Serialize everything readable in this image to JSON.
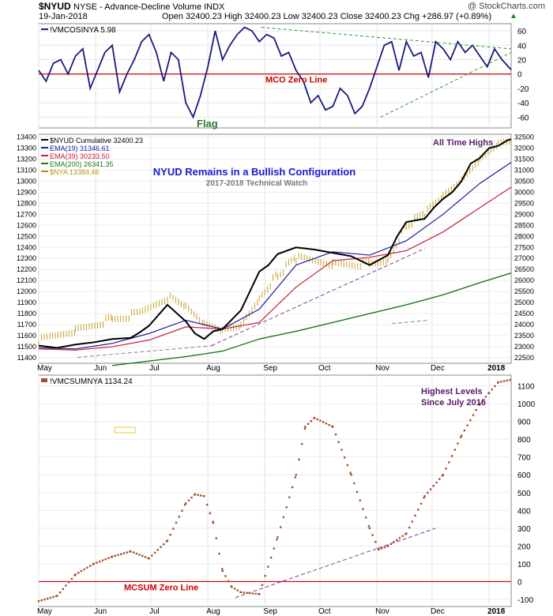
{
  "header": {
    "symbol": "$NYUD",
    "description": "NYSE - Advance-Decline Volume INDX",
    "watermark": "@ StockCharts.com",
    "date": "19-Jan-2018",
    "quote": "Open 32400.23  High 32400.23  Low 32400.23  Close 32400.23  Chg +286.97 (+0.89%)",
    "chg_marker": "▲"
  },
  "months": [
    "May",
    "Jun",
    "Jul",
    "Aug",
    "Sep",
    "Oct",
    "Nov",
    "Dec",
    "2018"
  ],
  "panel1": {
    "legend": "!VMCOSINYA 5.98",
    "zero_label": "MCO Zero Line",
    "flag_label": "Flag",
    "yticks": [
      60,
      40,
      20,
      0,
      -20,
      -40,
      -60
    ],
    "ylim": [
      -75,
      70
    ],
    "series_color": "#1a1a80",
    "zero_color": "#cc0000",
    "trend_color": "#339933"
  },
  "panel2": {
    "legend": [
      {
        "text": "$NYUD Cumulative 32400.23",
        "color": "#000000"
      },
      {
        "text": "EMA(19) 31346.61",
        "color": "#1a1a9a"
      },
      {
        "text": "EMA(39) 30233.50",
        "color": "#cc1a3a"
      },
      {
        "text": "EMA(200) 26341.35",
        "color": "#1a7a1a"
      },
      {
        "text": "$NYA 13384.46",
        "color": "#b8960a"
      }
    ],
    "title": "NYUD Remains in a Bullish Configuration",
    "subtitle": "2017-2018 Technical Watch",
    "ath_label": "All Time Highs",
    "left_ticks": [
      13400,
      13300,
      13200,
      13100,
      13000,
      12900,
      12800,
      12700,
      12600,
      12500,
      12400,
      12300,
      12200,
      12100,
      12000,
      11900,
      11800,
      11700,
      11600,
      11500,
      11400
    ],
    "right_ticks": [
      32500,
      32000,
      31500,
      31000,
      30500,
      30000,
      29500,
      29000,
      28500,
      28000,
      27500,
      27000,
      26500,
      26000,
      25500,
      25000,
      24500,
      24000,
      23500,
      23000,
      22500
    ],
    "ylim_left": [
      11350,
      13425
    ],
    "ylim_right": [
      22250,
      32625
    ]
  },
  "panel3": {
    "legend": "!VMCSUMNYA 1134.24",
    "zero_label": "MCSUM Zero Line",
    "annotation_line1": "Highest Levels",
    "annotation_line2": "Since July 2016",
    "yticks": [
      1100,
      1000,
      900,
      800,
      700,
      600,
      500,
      400,
      300,
      200,
      100,
      0,
      -100
    ],
    "ylim": [
      -140,
      1160
    ],
    "dot_color": "#a0522d"
  },
  "chart_data": [
    {
      "type": "line",
      "title": "",
      "series": [
        {
          "name": "!VMCOSINYA",
          "x_days": [
            0,
            4,
            8,
            12,
            16,
            20,
            24,
            28,
            32,
            36,
            40,
            44,
            48,
            52,
            56,
            60,
            64,
            68,
            72,
            76,
            80,
            84,
            88,
            92,
            96,
            100,
            104,
            108,
            112,
            116,
            120,
            124,
            128,
            132,
            136,
            140,
            144,
            148,
            152,
            156,
            160,
            164,
            168,
            172,
            176,
            180,
            184,
            188,
            192,
            196,
            200,
            204,
            208,
            212,
            216,
            220,
            224,
            228,
            232,
            236,
            240,
            244,
            248,
            252,
            257
          ],
          "values": [
            5,
            -10,
            15,
            20,
            0,
            25,
            35,
            -20,
            5,
            30,
            40,
            -25,
            0,
            20,
            45,
            55,
            30,
            -10,
            30,
            20,
            -40,
            -60,
            -30,
            10,
            60,
            20,
            40,
            55,
            65,
            60,
            45,
            55,
            50,
            25,
            30,
            5,
            -10,
            -40,
            -30,
            -50,
            -45,
            -20,
            -30,
            -55,
            -45,
            -20,
            10,
            40,
            45,
            5,
            45,
            25,
            30,
            -5,
            45,
            35,
            20,
            45,
            30,
            40,
            25,
            10,
            35,
            20,
            6
          ]
        },
        {
          "name": "trend-upper",
          "x_days": [
            121,
            257
          ],
          "values": [
            65,
            35
          ]
        },
        {
          "name": "trend-lower",
          "x_days": [
            186,
            257
          ],
          "values": [
            -60,
            30
          ]
        }
      ],
      "ylim": [
        -75,
        70
      ]
    },
    {
      "type": "line",
      "series": [
        {
          "name": "$NYUD Cumulative",
          "x_days": [
            0,
            10,
            20,
            30,
            40,
            50,
            55,
            60,
            70,
            80,
            85,
            90,
            95,
            100,
            110,
            120,
            125,
            130,
            140,
            150,
            160,
            170,
            180,
            190,
            195,
            200,
            210,
            215,
            220,
            225,
            230,
            235,
            240,
            245,
            250,
            255,
            257
          ],
          "values": [
            23050,
            22950,
            23100,
            23200,
            23350,
            23400,
            23650,
            23950,
            24900,
            24150,
            23600,
            23350,
            23700,
            23800,
            24650,
            26400,
            26700,
            27200,
            27500,
            27400,
            27250,
            27100,
            26700,
            27150,
            28000,
            28650,
            28800,
            29300,
            29700,
            30000,
            30500,
            31300,
            31550,
            32000,
            32100,
            32350,
            32400
          ]
        },
        {
          "name": "EMA(19)",
          "x_days": [
            0,
            20,
            40,
            60,
            80,
            100,
            120,
            140,
            160,
            180,
            200,
            220,
            240,
            257
          ],
          "values": [
            22950,
            22900,
            23150,
            23600,
            24200,
            23800,
            24700,
            26700,
            27300,
            27150,
            27800,
            29000,
            30400,
            31350
          ]
        },
        {
          "name": "EMA(39)",
          "x_days": [
            0,
            20,
            40,
            60,
            80,
            100,
            120,
            140,
            160,
            180,
            200,
            220,
            240,
            257
          ],
          "values": [
            22900,
            22850,
            23000,
            23300,
            23900,
            23800,
            24100,
            25700,
            26900,
            27050,
            27350,
            28200,
            29300,
            30230
          ]
        },
        {
          "name": "EMA(200)",
          "x_days": [
            40,
            60,
            80,
            100,
            120,
            140,
            160,
            180,
            200,
            220,
            240,
            257
          ],
          "values": [
            22150,
            22350,
            22550,
            22800,
            23350,
            23700,
            24100,
            24500,
            24900,
            25350,
            25900,
            26340
          ]
        },
        {
          "name": "$NYA",
          "x_days": [
            0,
            20,
            40,
            55,
            70,
            80,
            90,
            100,
            110,
            120,
            130,
            140,
            160,
            180,
            190,
            200,
            210,
            220,
            230,
            240,
            250,
            257
          ],
          "values": [
            11550,
            11650,
            11750,
            11800,
            11950,
            11850,
            11700,
            11650,
            11700,
            11950,
            12150,
            12300,
            12250,
            12250,
            12300,
            12600,
            12700,
            12850,
            13000,
            13200,
            13350,
            13380
          ]
        }
      ],
      "ylim_left": [
        11350,
        13425
      ],
      "ylim_right": [
        22250,
        32625
      ]
    },
    {
      "type": "scatter",
      "series": [
        {
          "name": "!VMCSUMNYA",
          "x_days": [
            0,
            10,
            20,
            30,
            40,
            50,
            60,
            70,
            80,
            85,
            90,
            95,
            100,
            105,
            110,
            120,
            130,
            140,
            145,
            150,
            160,
            170,
            180,
            185,
            190,
            200,
            210,
            220,
            230,
            240,
            245,
            250,
            257
          ],
          "values": [
            -110,
            -80,
            40,
            100,
            140,
            170,
            130,
            230,
            440,
            490,
            480,
            330,
            60,
            -30,
            -60,
            -70,
            250,
            600,
            870,
            920,
            870,
            600,
            300,
            180,
            200,
            270,
            480,
            600,
            820,
            1000,
            1060,
            1120,
            1134
          ]
        }
      ],
      "ylim": [
        -140,
        1160
      ]
    }
  ]
}
